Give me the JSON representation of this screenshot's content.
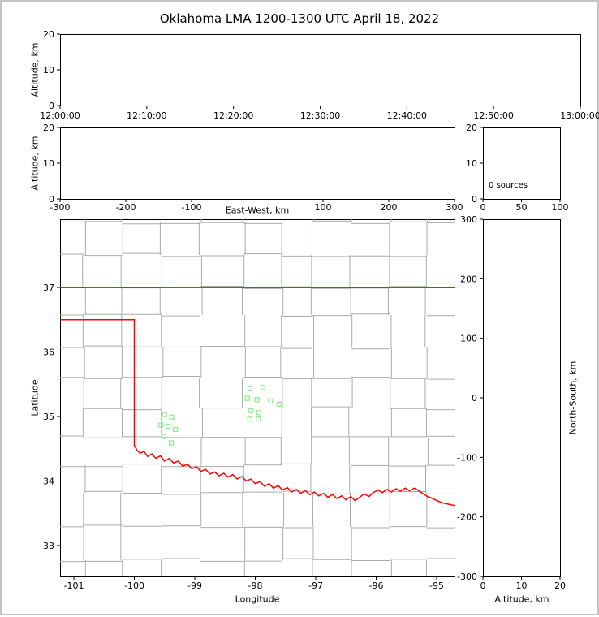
{
  "title": "Oklahoma LMA 1200-1300 UTC April 18, 2022",
  "colors": {
    "background": "#ffffff",
    "frame_border": "#c3c3c3",
    "axis": "#000000",
    "state_border": "#ff0000",
    "county_lines": "#ababab",
    "station_marker": "#90ee90"
  },
  "chart_data": [
    {
      "id": "time_altitude",
      "type": "scatter",
      "ylabel": "Altitude, km",
      "xticks": [
        "12:00:00",
        "12:10:00",
        "12:20:00",
        "12:30:00",
        "12:40:00",
        "12:50:00",
        "13:00:00"
      ],
      "yticks": [
        "0",
        "10",
        "20"
      ],
      "yticks_pos": [
        0,
        10,
        20
      ],
      "ylim": [
        0,
        20
      ],
      "points": []
    },
    {
      "id": "eastwest_altitude",
      "type": "scatter",
      "xlabel": "East-West, km",
      "ylabel": "Altitude, km",
      "xticks": [
        "-300",
        "-200",
        "-100",
        "100",
        "200",
        "300"
      ],
      "xticks_pos": [
        -300,
        -200,
        -100,
        100,
        200,
        300
      ],
      "xlim": [
        -300,
        300
      ],
      "yticks": [
        "0",
        "10",
        "20"
      ],
      "yticks_pos": [
        0,
        10,
        20
      ],
      "ylim": [
        0,
        20
      ],
      "points": []
    },
    {
      "id": "altitude_histogram",
      "type": "line",
      "annotation": "0 sources",
      "xticks": [
        "0",
        "50",
        "100"
      ],
      "xticks_pos": [
        0,
        50,
        100
      ],
      "xlim": [
        0,
        100
      ],
      "yticks": [
        "0",
        "10",
        "20"
      ],
      "yticks_pos": [
        0,
        10,
        20
      ],
      "ylim": [
        0,
        20
      ],
      "points": []
    },
    {
      "id": "plan_view",
      "type": "scatter",
      "xlabel": "Longitude",
      "ylabel": "Latitude",
      "xticks": [
        "-101",
        "-100",
        "-99",
        "-98",
        "-97",
        "-96",
        "-95"
      ],
      "xticks_pos": [
        -101,
        -100,
        -99,
        -98,
        -97,
        -96,
        -95
      ],
      "xlim": [
        -101.228,
        -94.705
      ],
      "yticks": [
        "33",
        "34",
        "35",
        "36",
        "37"
      ],
      "yticks_pos": [
        33,
        34,
        35,
        36,
        37
      ],
      "ylim": [
        32.522,
        38.057
      ],
      "marker": "open-square",
      "station_color": "#90ee90",
      "station_locations": [
        [
          -98.09,
          35.43
        ],
        [
          -97.87,
          35.45
        ],
        [
          -98.13,
          35.28
        ],
        [
          -97.97,
          35.26
        ],
        [
          -97.75,
          35.24
        ],
        [
          -97.6,
          35.19
        ],
        [
          -98.07,
          35.09
        ],
        [
          -97.94,
          35.06
        ],
        [
          -98.09,
          34.96
        ],
        [
          -97.95,
          34.96
        ],
        [
          -99.5,
          35.03
        ],
        [
          -99.38,
          34.99
        ],
        [
          -99.56,
          34.87
        ],
        [
          -99.44,
          34.85
        ],
        [
          -99.32,
          34.8
        ],
        [
          -99.51,
          34.69
        ],
        [
          -99.39,
          34.59
        ]
      ],
      "points": []
    },
    {
      "id": "altitude_northsouth",
      "type": "scatter",
      "xlabel": "Altitude, km",
      "ylabel_right": "North-South, km",
      "xticks": [
        "0",
        "10",
        "20"
      ],
      "xticks_pos": [
        0,
        10,
        20
      ],
      "xlim": [
        0,
        20
      ],
      "yticks": [
        "-300",
        "-200",
        "-100",
        "0",
        "100",
        "200",
        "300"
      ],
      "yticks_pos": [
        -300,
        -200,
        -100,
        0,
        100,
        200,
        300
      ],
      "ylim": [
        -300,
        300
      ],
      "points": []
    }
  ],
  "map": {
    "state_border_color": "#ff0000",
    "county_line_color": "#ababab",
    "county_grid_seed": 11,
    "state_border": [
      [
        [
          -101.23,
          36.999
        ],
        [
          -94.7,
          36.999
        ]
      ],
      [
        [
          -101.23,
          36.5
        ],
        [
          -100.0,
          36.5
        ],
        [
          -100.0,
          34.55
        ],
        [
          -99.95,
          34.47
        ],
        [
          -99.9,
          34.43
        ],
        [
          -99.84,
          34.46
        ],
        [
          -99.78,
          34.38
        ],
        [
          -99.71,
          34.42
        ],
        [
          -99.64,
          34.35
        ],
        [
          -99.57,
          34.39
        ],
        [
          -99.5,
          34.31
        ],
        [
          -99.42,
          34.35
        ],
        [
          -99.35,
          34.28
        ],
        [
          -99.27,
          34.31
        ],
        [
          -99.2,
          34.23
        ],
        [
          -99.12,
          34.26
        ],
        [
          -99.05,
          34.19
        ],
        [
          -98.97,
          34.22
        ],
        [
          -98.9,
          34.15
        ],
        [
          -98.82,
          34.18
        ],
        [
          -98.75,
          34.11
        ],
        [
          -98.67,
          34.14
        ],
        [
          -98.6,
          34.08
        ],
        [
          -98.52,
          34.12
        ],
        [
          -98.45,
          34.06
        ],
        [
          -98.37,
          34.1
        ],
        [
          -98.3,
          34.03
        ],
        [
          -98.22,
          34.07
        ],
        [
          -98.15,
          34.0
        ],
        [
          -98.07,
          34.03
        ],
        [
          -98.0,
          33.96
        ],
        [
          -97.92,
          33.99
        ],
        [
          -97.85,
          33.92
        ],
        [
          -97.77,
          33.96
        ],
        [
          -97.7,
          33.89
        ],
        [
          -97.62,
          33.93
        ],
        [
          -97.55,
          33.86
        ],
        [
          -97.47,
          33.9
        ],
        [
          -97.4,
          33.83
        ],
        [
          -97.32,
          33.87
        ],
        [
          -97.25,
          33.81
        ],
        [
          -97.17,
          33.85
        ],
        [
          -97.1,
          33.79
        ],
        [
          -97.02,
          33.83
        ],
        [
          -96.95,
          33.77
        ],
        [
          -96.87,
          33.81
        ],
        [
          -96.8,
          33.75
        ],
        [
          -96.72,
          33.79
        ],
        [
          -96.65,
          33.73
        ],
        [
          -96.57,
          33.77
        ],
        [
          -96.5,
          33.71
        ],
        [
          -96.42,
          33.76
        ],
        [
          -96.35,
          33.7
        ],
        [
          -96.27,
          33.75
        ],
        [
          -96.2,
          33.8
        ],
        [
          -96.12,
          33.76
        ],
        [
          -96.05,
          33.82
        ],
        [
          -95.97,
          33.86
        ],
        [
          -95.9,
          33.82
        ],
        [
          -95.82,
          33.87
        ],
        [
          -95.75,
          33.83
        ],
        [
          -95.67,
          33.88
        ],
        [
          -95.6,
          33.84
        ],
        [
          -95.52,
          33.89
        ],
        [
          -95.45,
          33.85
        ],
        [
          -95.37,
          33.89
        ],
        [
          -95.3,
          33.85
        ],
        [
          -95.22,
          33.8
        ],
        [
          -95.15,
          33.76
        ],
        [
          -95.07,
          33.73
        ],
        [
          -95.0,
          33.7
        ],
        [
          -94.9,
          33.66
        ],
        [
          -94.8,
          33.64
        ],
        [
          -94.7,
          33.62
        ]
      ]
    ]
  }
}
